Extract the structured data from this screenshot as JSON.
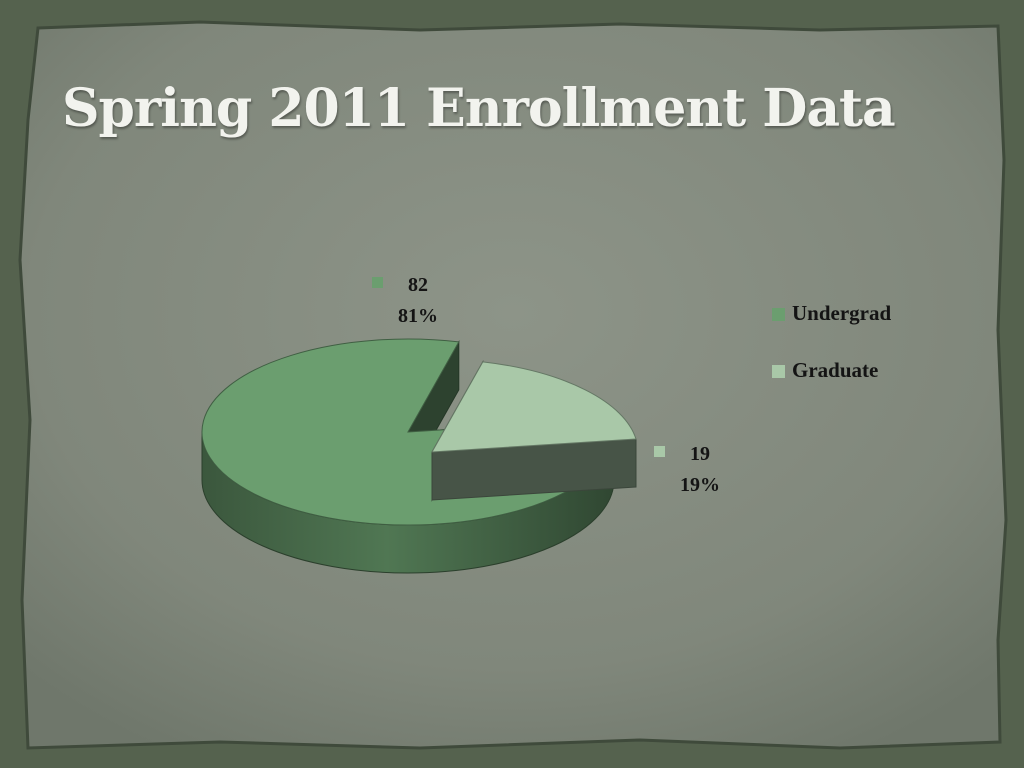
{
  "slide": {
    "title": "Spring 2011 Enrollment Data",
    "colors": {
      "background_outer": "#56634f",
      "paper": "#858c80",
      "title": "#f2f3ee"
    }
  },
  "chart_data": {
    "type": "pie",
    "style": "3d-exploded",
    "categories": [
      "Undergrad",
      "Graduate"
    ],
    "values": [
      82,
      19
    ],
    "percent_labels": [
      "81%",
      "19%"
    ],
    "colors": [
      "#6b9e6f",
      "#a9c8a8"
    ],
    "legend_position": "right",
    "title": ""
  }
}
